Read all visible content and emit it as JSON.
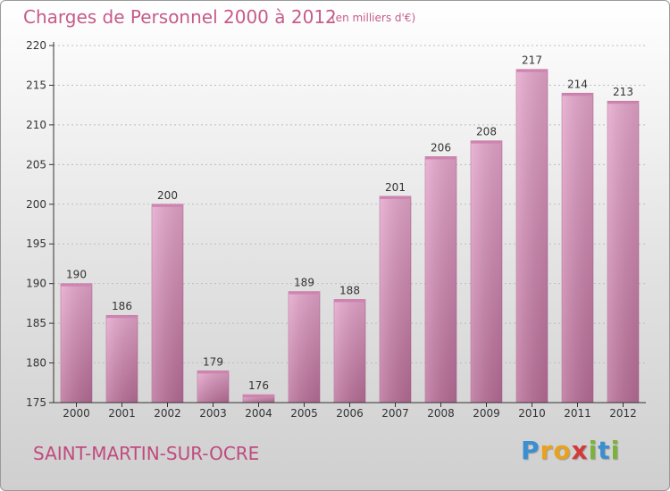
{
  "title": "Charges de Personnel 2000 à 2012",
  "subtitle": "(en milliers d'€)",
  "commune": "SAINT-MARTIN-SUR-OCRE",
  "brand": {
    "letters": [
      "P",
      "r",
      "o",
      "x",
      "i",
      "t",
      "i"
    ],
    "colors": [
      "#3a8fd1",
      "#e8a21c",
      "#e8a21c",
      "#d23a3a",
      "#7bb33a",
      "#3a8fd1",
      "#7bb33a"
    ]
  },
  "colors": {
    "bar_top": "#e6a6cc",
    "bar_bottom": "#b96e98",
    "axis": "#333333",
    "grid": "#bdbdbd"
  },
  "chart_data": {
    "type": "bar",
    "title": "Charges de Personnel 2000 à 2012",
    "subtitle": "(en milliers d'€)",
    "categories": [
      "2000",
      "2001",
      "2002",
      "2003",
      "2004",
      "2005",
      "2006",
      "2007",
      "2008",
      "2009",
      "2010",
      "2011",
      "2012"
    ],
    "values": [
      190,
      186,
      200,
      179,
      176,
      189,
      188,
      201,
      206,
      208,
      217,
      214,
      213
    ],
    "ylim": [
      175,
      220
    ],
    "yticks": [
      175,
      180,
      185,
      190,
      195,
      200,
      205,
      210,
      215,
      220
    ],
    "grid": true,
    "xlabel": "",
    "ylabel": ""
  }
}
